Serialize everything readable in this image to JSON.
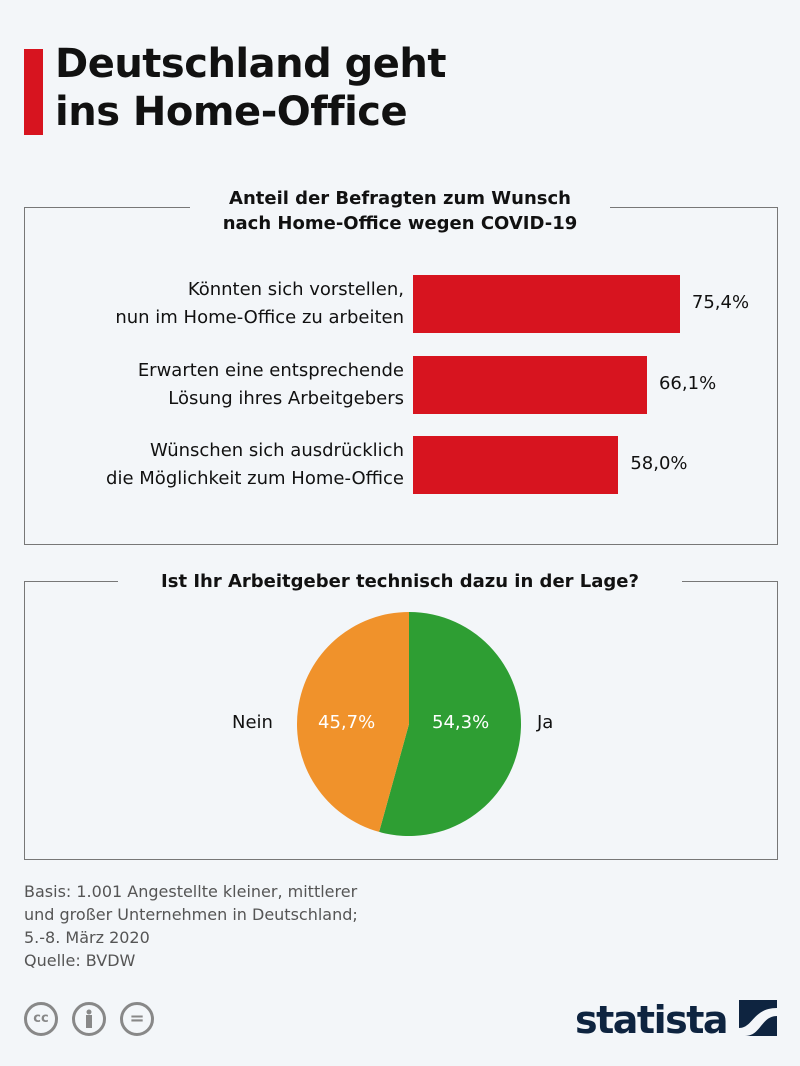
{
  "title": "Deutschland geht\nins Home-Office",
  "chart_data": [
    {
      "type": "bar",
      "orientation": "horizontal",
      "title": "Anteil der Befragten zum Wunsch\nnach Home-Office wegen COVID-19",
      "categories": [
        "Könnten sich vorstellen,\nnun im Home-Office zu arbeiten",
        "Erwarten eine entsprechende\nLösung ihres Arbeitgebers",
        "Wünschen sich ausdrücklich\ndie Möglichkeit zum Home-Office"
      ],
      "values": [
        75.4,
        66.1,
        58.0
      ],
      "value_labels": [
        "75,4%",
        "66,1%",
        "58,0%"
      ],
      "unit": "%",
      "color": "#d7141f"
    },
    {
      "type": "pie",
      "title": "Ist Ihr Arbeitgeber technisch dazu in der Lage?",
      "slices": [
        {
          "label": "Ja",
          "value": 54.3,
          "value_label": "54,3%",
          "color": "#2e9e33"
        },
        {
          "label": "Nein",
          "value": 45.7,
          "value_label": "45,7%",
          "color": "#f0922b"
        }
      ]
    }
  ],
  "footnote": "Basis: 1.001 Angestellte kleiner, mittlerer\nund großer Unternehmen in Deutschland;\n5.-8. März 2020\nQuelle: BVDW",
  "license_icons": [
    "cc-icon",
    "by-icon",
    "nd-icon"
  ],
  "license_text": {
    "cc": "cc",
    "nd": "="
  },
  "logo": "statista"
}
